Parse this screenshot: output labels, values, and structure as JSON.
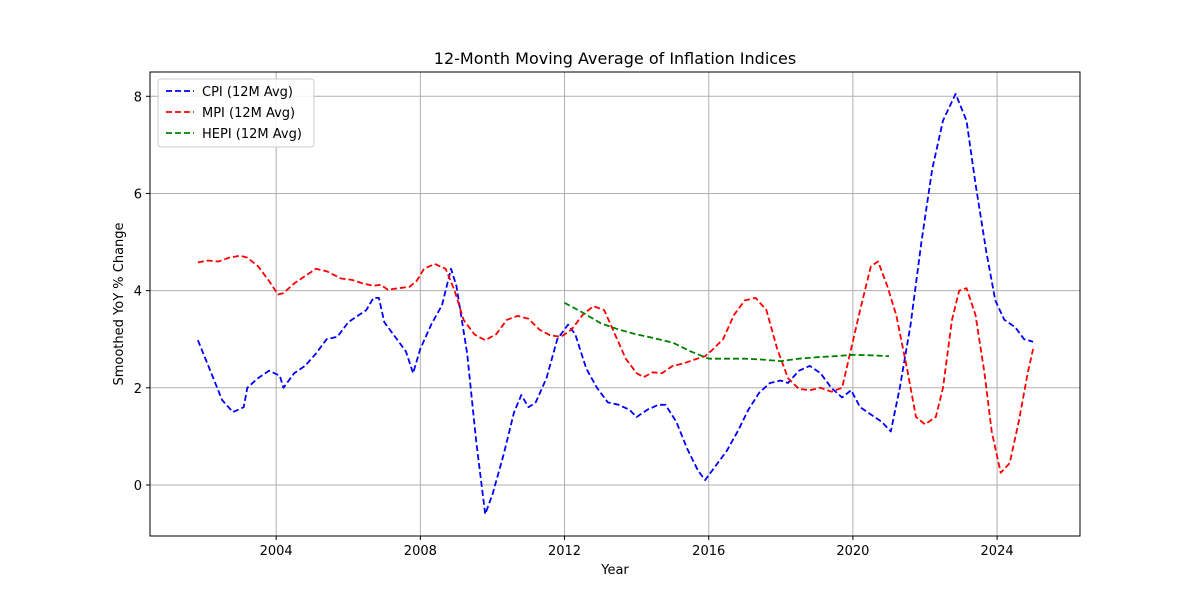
{
  "chart_data": {
    "type": "line",
    "title": "12-Month Moving Average of Inflation Indices",
    "xlabel": "Year",
    "ylabel": "Smoothed YoY % Change",
    "xlim": [
      2000.5,
      2026.3
    ],
    "ylim": [
      -1.05,
      8.5
    ],
    "xticks": [
      2004,
      2008,
      2012,
      2016,
      2020,
      2024
    ],
    "yticks": [
      0,
      2,
      4,
      6,
      8
    ],
    "grid": true,
    "legend_position": "top-left",
    "series": [
      {
        "name": "CPI (12M Avg)",
        "color": "#0000ff",
        "points": [
          [
            2001.83,
            2.98
          ],
          [
            2002.2,
            2.3
          ],
          [
            2002.5,
            1.75
          ],
          [
            2002.8,
            1.5
          ],
          [
            2003.1,
            1.6
          ],
          [
            2003.2,
            2.0
          ],
          [
            2003.5,
            2.2
          ],
          [
            2003.8,
            2.35
          ],
          [
            2004.1,
            2.25
          ],
          [
            2004.2,
            2.0
          ],
          [
            2004.5,
            2.3
          ],
          [
            2004.8,
            2.45
          ],
          [
            2005.1,
            2.7
          ],
          [
            2005.4,
            3.0
          ],
          [
            2005.7,
            3.05
          ],
          [
            2006.0,
            3.35
          ],
          [
            2006.3,
            3.5
          ],
          [
            2006.5,
            3.6
          ],
          [
            2006.7,
            3.85
          ],
          [
            2006.85,
            3.85
          ],
          [
            2007.0,
            3.35
          ],
          [
            2007.3,
            3.05
          ],
          [
            2007.6,
            2.75
          ],
          [
            2007.8,
            2.3
          ],
          [
            2008.0,
            2.8
          ],
          [
            2008.3,
            3.3
          ],
          [
            2008.6,
            3.7
          ],
          [
            2008.85,
            4.45
          ],
          [
            2009.0,
            4.1
          ],
          [
            2009.3,
            2.7
          ],
          [
            2009.55,
            0.9
          ],
          [
            2009.8,
            -0.6
          ],
          [
            2010.0,
            -0.2
          ],
          [
            2010.3,
            0.6
          ],
          [
            2010.6,
            1.5
          ],
          [
            2010.8,
            1.85
          ],
          [
            2011.0,
            1.6
          ],
          [
            2011.2,
            1.7
          ],
          [
            2011.5,
            2.2
          ],
          [
            2011.8,
            3.0
          ],
          [
            2012.1,
            3.3
          ],
          [
            2012.3,
            3.1
          ],
          [
            2012.6,
            2.4
          ],
          [
            2012.9,
            2.0
          ],
          [
            2013.2,
            1.7
          ],
          [
            2013.5,
            1.65
          ],
          [
            2013.8,
            1.55
          ],
          [
            2014.0,
            1.4
          ],
          [
            2014.3,
            1.55
          ],
          [
            2014.6,
            1.65
          ],
          [
            2014.8,
            1.65
          ],
          [
            2015.1,
            1.3
          ],
          [
            2015.4,
            0.75
          ],
          [
            2015.7,
            0.3
          ],
          [
            2015.9,
            0.1
          ],
          [
            2016.2,
            0.4
          ],
          [
            2016.5,
            0.7
          ],
          [
            2016.8,
            1.1
          ],
          [
            2017.1,
            1.55
          ],
          [
            2017.4,
            1.9
          ],
          [
            2017.7,
            2.1
          ],
          [
            2018.0,
            2.15
          ],
          [
            2018.2,
            2.1
          ],
          [
            2018.5,
            2.35
          ],
          [
            2018.8,
            2.45
          ],
          [
            2019.1,
            2.3
          ],
          [
            2019.4,
            2.0
          ],
          [
            2019.7,
            1.8
          ],
          [
            2019.95,
            1.95
          ],
          [
            2020.2,
            1.6
          ],
          [
            2020.5,
            1.45
          ],
          [
            2020.8,
            1.3
          ],
          [
            2021.05,
            1.1
          ],
          [
            2021.3,
            2.0
          ],
          [
            2021.6,
            3.3
          ],
          [
            2021.9,
            5.0
          ],
          [
            2022.2,
            6.5
          ],
          [
            2022.5,
            7.5
          ],
          [
            2022.85,
            8.05
          ],
          [
            2023.15,
            7.5
          ],
          [
            2023.4,
            6.2
          ],
          [
            2023.7,
            4.8
          ],
          [
            2023.95,
            3.8
          ],
          [
            2024.2,
            3.4
          ],
          [
            2024.5,
            3.25
          ],
          [
            2024.75,
            3.0
          ],
          [
            2025.0,
            2.95
          ]
        ]
      },
      {
        "name": "MPI (12M Avg)",
        "color": "#ff0000",
        "points": [
          [
            2001.83,
            4.58
          ],
          [
            2002.1,
            4.62
          ],
          [
            2002.4,
            4.6
          ],
          [
            2002.7,
            4.68
          ],
          [
            2003.0,
            4.72
          ],
          [
            2003.2,
            4.68
          ],
          [
            2003.5,
            4.5
          ],
          [
            2003.8,
            4.2
          ],
          [
            2004.05,
            3.92
          ],
          [
            2004.2,
            3.95
          ],
          [
            2004.5,
            4.15
          ],
          [
            2004.8,
            4.3
          ],
          [
            2005.1,
            4.45
          ],
          [
            2005.4,
            4.4
          ],
          [
            2005.8,
            4.25
          ],
          [
            2006.1,
            4.22
          ],
          [
            2006.4,
            4.15
          ],
          [
            2006.7,
            4.1
          ],
          [
            2006.9,
            4.12
          ],
          [
            2007.1,
            4.02
          ],
          [
            2007.4,
            4.05
          ],
          [
            2007.7,
            4.08
          ],
          [
            2007.9,
            4.2
          ],
          [
            2008.1,
            4.45
          ],
          [
            2008.4,
            4.55
          ],
          [
            2008.7,
            4.45
          ],
          [
            2008.95,
            4.0
          ],
          [
            2009.2,
            3.4
          ],
          [
            2009.5,
            3.1
          ],
          [
            2009.8,
            2.98
          ],
          [
            2010.1,
            3.1
          ],
          [
            2010.4,
            3.4
          ],
          [
            2010.7,
            3.48
          ],
          [
            2011.0,
            3.42
          ],
          [
            2011.3,
            3.2
          ],
          [
            2011.6,
            3.08
          ],
          [
            2011.9,
            3.05
          ],
          [
            2012.2,
            3.2
          ],
          [
            2012.5,
            3.5
          ],
          [
            2012.8,
            3.68
          ],
          [
            2013.1,
            3.6
          ],
          [
            2013.4,
            3.1
          ],
          [
            2013.7,
            2.6
          ],
          [
            2014.0,
            2.3
          ],
          [
            2014.2,
            2.22
          ],
          [
            2014.45,
            2.32
          ],
          [
            2014.7,
            2.3
          ],
          [
            2015.0,
            2.45
          ],
          [
            2015.3,
            2.5
          ],
          [
            2015.6,
            2.58
          ],
          [
            2015.9,
            2.65
          ],
          [
            2016.1,
            2.78
          ],
          [
            2016.4,
            3.0
          ],
          [
            2016.7,
            3.5
          ],
          [
            2017.0,
            3.8
          ],
          [
            2017.3,
            3.85
          ],
          [
            2017.6,
            3.6
          ],
          [
            2017.9,
            2.8
          ],
          [
            2018.2,
            2.2
          ],
          [
            2018.5,
            1.98
          ],
          [
            2018.8,
            1.95
          ],
          [
            2019.1,
            2.0
          ],
          [
            2019.4,
            1.92
          ],
          [
            2019.7,
            2.0
          ],
          [
            2019.95,
            2.8
          ],
          [
            2020.2,
            3.6
          ],
          [
            2020.5,
            4.5
          ],
          [
            2020.7,
            4.6
          ],
          [
            2020.95,
            4.1
          ],
          [
            2021.2,
            3.5
          ],
          [
            2021.5,
            2.4
          ],
          [
            2021.75,
            1.4
          ],
          [
            2022.0,
            1.25
          ],
          [
            2022.3,
            1.4
          ],
          [
            2022.5,
            2.0
          ],
          [
            2022.75,
            3.4
          ],
          [
            2022.95,
            4.0
          ],
          [
            2023.15,
            4.05
          ],
          [
            2023.4,
            3.5
          ],
          [
            2023.65,
            2.3
          ],
          [
            2023.85,
            1.1
          ],
          [
            2024.1,
            0.25
          ],
          [
            2024.35,
            0.45
          ],
          [
            2024.6,
            1.3
          ],
          [
            2024.85,
            2.3
          ],
          [
            2025.0,
            2.8
          ]
        ]
      },
      {
        "name": "HEPI (12M Avg)",
        "color": "#008000",
        "points": [
          [
            2012.0,
            3.75
          ],
          [
            2012.5,
            3.55
          ],
          [
            2013.0,
            3.33
          ],
          [
            2013.5,
            3.2
          ],
          [
            2014.0,
            3.1
          ],
          [
            2014.5,
            3.02
          ],
          [
            2015.0,
            2.93
          ],
          [
            2015.5,
            2.75
          ],
          [
            2016.0,
            2.6
          ],
          [
            2016.5,
            2.6
          ],
          [
            2017.0,
            2.6
          ],
          [
            2017.5,
            2.58
          ],
          [
            2018.0,
            2.55
          ],
          [
            2018.5,
            2.6
          ],
          [
            2019.0,
            2.63
          ],
          [
            2019.5,
            2.65
          ],
          [
            2020.0,
            2.68
          ],
          [
            2020.5,
            2.67
          ],
          [
            2021.0,
            2.65
          ]
        ]
      }
    ]
  }
}
